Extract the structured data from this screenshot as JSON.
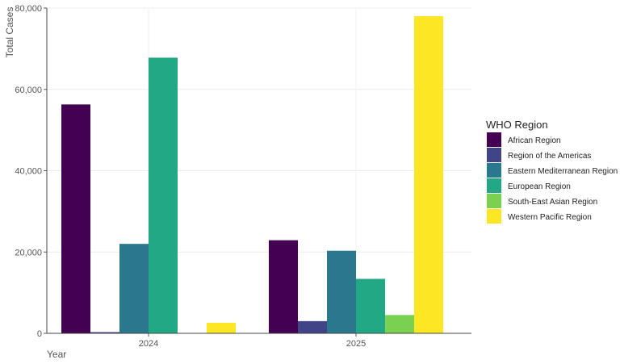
{
  "chart_data": {
    "type": "bar",
    "title": "",
    "xlabel": "Year",
    "ylabel": "Total Cases",
    "categories": [
      "2024",
      "2025"
    ],
    "ylim": [
      0,
      80000
    ],
    "yticks": [
      0,
      20000,
      40000,
      60000,
      80000
    ],
    "ytick_labels": [
      "0",
      "20,000",
      "40,000",
      "60,000",
      "80,000"
    ],
    "grid": true,
    "legend": {
      "title": "WHO Region",
      "placement": "right"
    },
    "series": [
      {
        "name": "African Region",
        "color": "#440154",
        "values": [
          56300,
          22900
        ]
      },
      {
        "name": "Region of the Americas",
        "color": "#414487",
        "values": [
          300,
          3000
        ]
      },
      {
        "name": "Eastern Mediterranean Region",
        "color": "#2a788e",
        "values": [
          22000,
          20300
        ]
      },
      {
        "name": "European Region",
        "color": "#22a884",
        "values": [
          67800,
          13400
        ]
      },
      {
        "name": "South-East Asian Region",
        "color": "#7ad151",
        "values": [
          0,
          4500
        ]
      },
      {
        "name": "Western Pacific Region",
        "color": "#fde725",
        "values": [
          2600,
          78000
        ]
      }
    ]
  }
}
